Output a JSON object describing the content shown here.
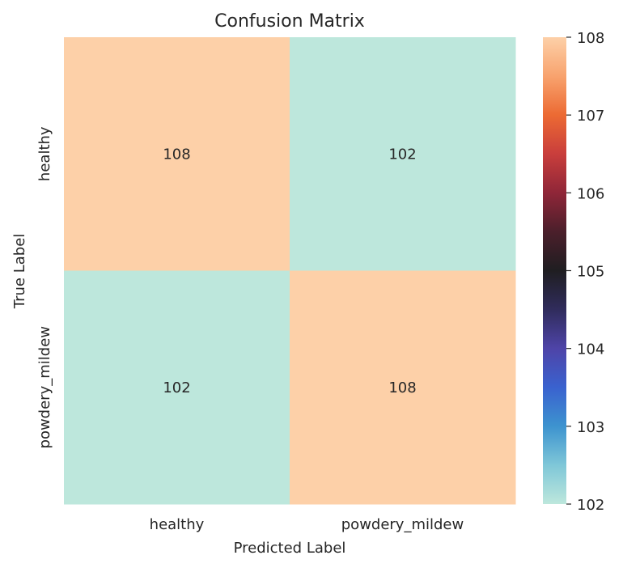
{
  "chart_data": {
    "type": "heatmap",
    "title": "Confusion Matrix",
    "xlabel": "Predicted Label",
    "ylabel": "True Label",
    "x_categories": [
      "healthy",
      "powdery_mildew"
    ],
    "y_categories": [
      "healthy",
      "powdery_mildew"
    ],
    "values": [
      [
        108,
        102
      ],
      [
        102,
        108
      ]
    ],
    "colorbar": {
      "min": 102,
      "max": 108,
      "ticks": [
        "102",
        "103",
        "104",
        "105",
        "106",
        "107",
        "108"
      ],
      "colormap": "icefire",
      "stops": [
        "#bde7dc",
        "#7fc7d8",
        "#3d93cf",
        "#3a62cf",
        "#4e44a8",
        "#302c5c",
        "#1f1e21",
        "#4b1f2b",
        "#8f2638",
        "#c93e3c",
        "#ec6a33",
        "#f8a36e",
        "#fdd0a8"
      ]
    }
  }
}
